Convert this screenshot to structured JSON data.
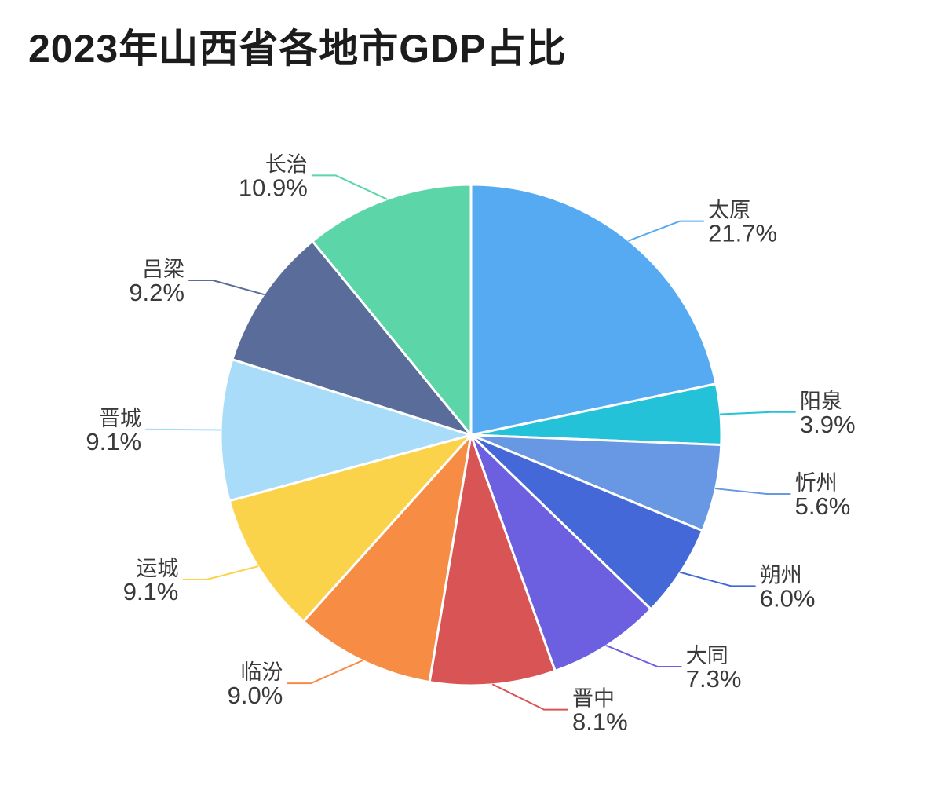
{
  "page": {
    "background_color": "#ffffff",
    "title_color": "#1c1c1c",
    "label_text_color": "#3a3a3a"
  },
  "chart_data": {
    "type": "pie",
    "title": "2023年山西省各地市GDP占比",
    "unit": "%",
    "legend": "none",
    "grid": false,
    "layout": {
      "start_angle": "top",
      "direction": "clockwise",
      "label_position": "outside-with-leader-lines"
    },
    "slices": [
      {
        "name": "太原",
        "value": 21.7,
        "label": "21.7%",
        "color": "#56aaf2"
      },
      {
        "name": "阳泉",
        "value": 3.9,
        "label": "3.9%",
        "color": "#24c2d8"
      },
      {
        "name": "忻州",
        "value": 5.6,
        "label": "5.6%",
        "color": "#6897e3"
      },
      {
        "name": "朔州",
        "value": 6.0,
        "label": "6.0%",
        "color": "#4468d8"
      },
      {
        "name": "大同",
        "value": 7.3,
        "label": "7.3%",
        "color": "#6c5fe0"
      },
      {
        "name": "晋中",
        "value": 8.1,
        "label": "8.1%",
        "color": "#d95454"
      },
      {
        "name": "临汾",
        "value": 9.0,
        "label": "9.0%",
        "color": "#f78c45"
      },
      {
        "name": "运城",
        "value": 9.1,
        "label": "9.1%",
        "color": "#fbd34a"
      },
      {
        "name": "晋城",
        "value": 9.1,
        "label": "9.1%",
        "color": "#a8dcf8"
      },
      {
        "name": "吕梁",
        "value": 9.2,
        "label": "9.2%",
        "color": "#5a6d9a"
      },
      {
        "name": "长治",
        "value": 10.9,
        "label": "10.9%",
        "color": "#5cd5a8"
      }
    ]
  }
}
